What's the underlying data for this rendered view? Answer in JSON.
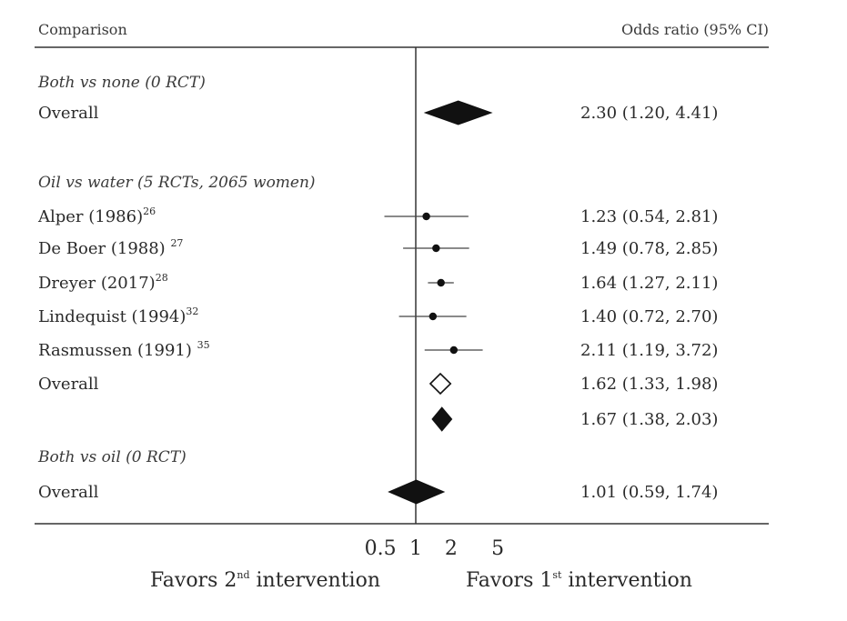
{
  "header": {
    "comparison": "Comparison",
    "or_ci": "Odds ratio (95% CI)"
  },
  "footer": {
    "favors_left_pre": "Favors 2",
    "favors_left_sup": "nd",
    "favors_left_post": " intervention",
    "favors_right_pre": "Favors 1",
    "favors_right_sup": "st",
    "favors_right_post": " intervention"
  },
  "chart_data": {
    "type": "forest",
    "x_scale": "log",
    "reference_line": 1,
    "xticks": [
      0.5,
      1,
      2,
      5
    ],
    "xtick_labels": [
      "0.5",
      "1",
      "2",
      "5"
    ],
    "rows": [
      {
        "kind": "group",
        "label": "Both vs none (0 RCT)"
      },
      {
        "kind": "pooled",
        "style": "filled",
        "label": "Overall",
        "or": 2.3,
        "lo": 1.2,
        "hi": 4.41,
        "ci_text": "2.30 (1.20, 4.41)"
      },
      {
        "kind": "spacer"
      },
      {
        "kind": "group",
        "label": "Oil vs water (5 RCTs, 2065 women)"
      },
      {
        "kind": "study",
        "label": "Alper (1986)",
        "ref": "26",
        "or": 1.23,
        "lo": 0.54,
        "hi": 2.81,
        "ci_text": "1.23 (0.54, 2.81)"
      },
      {
        "kind": "study",
        "label": "De Boer (1988) ",
        "ref": "27",
        "or": 1.49,
        "lo": 0.78,
        "hi": 2.85,
        "ci_text": "1.49 (0.78, 2.85)"
      },
      {
        "kind": "study",
        "label": "Dreyer (2017)",
        "ref": "28",
        "or": 1.64,
        "lo": 1.27,
        "hi": 2.11,
        "ci_text": "1.64 (1.27, 2.11)"
      },
      {
        "kind": "study",
        "label": "Lindequist (1994)",
        "ref": "32",
        "or": 1.4,
        "lo": 0.72,
        "hi": 2.7,
        "ci_text": "1.40 (0.72, 2.70)"
      },
      {
        "kind": "study",
        "label": "Rasmussen (1991) ",
        "ref": "35",
        "or": 2.11,
        "lo": 1.19,
        "hi": 3.72,
        "ci_text": "2.11 (1.19, 3.72)"
      },
      {
        "kind": "pooled",
        "style": "open",
        "label": "Overall",
        "or": 1.62,
        "lo": 1.33,
        "hi": 1.98,
        "ci_text": "1.62 (1.33, 1.98)"
      },
      {
        "kind": "pooled",
        "style": "filled",
        "label": "",
        "or": 1.67,
        "lo": 1.38,
        "hi": 2.03,
        "ci_text": "1.67 (1.38, 2.03)"
      },
      {
        "kind": "group",
        "label": "Both vs oil (0 RCT)"
      },
      {
        "kind": "pooled",
        "style": "filled",
        "label": "Overall",
        "or": 1.01,
        "lo": 0.59,
        "hi": 1.74,
        "ci_text": "1.01 (0.59, 1.74)"
      }
    ]
  }
}
